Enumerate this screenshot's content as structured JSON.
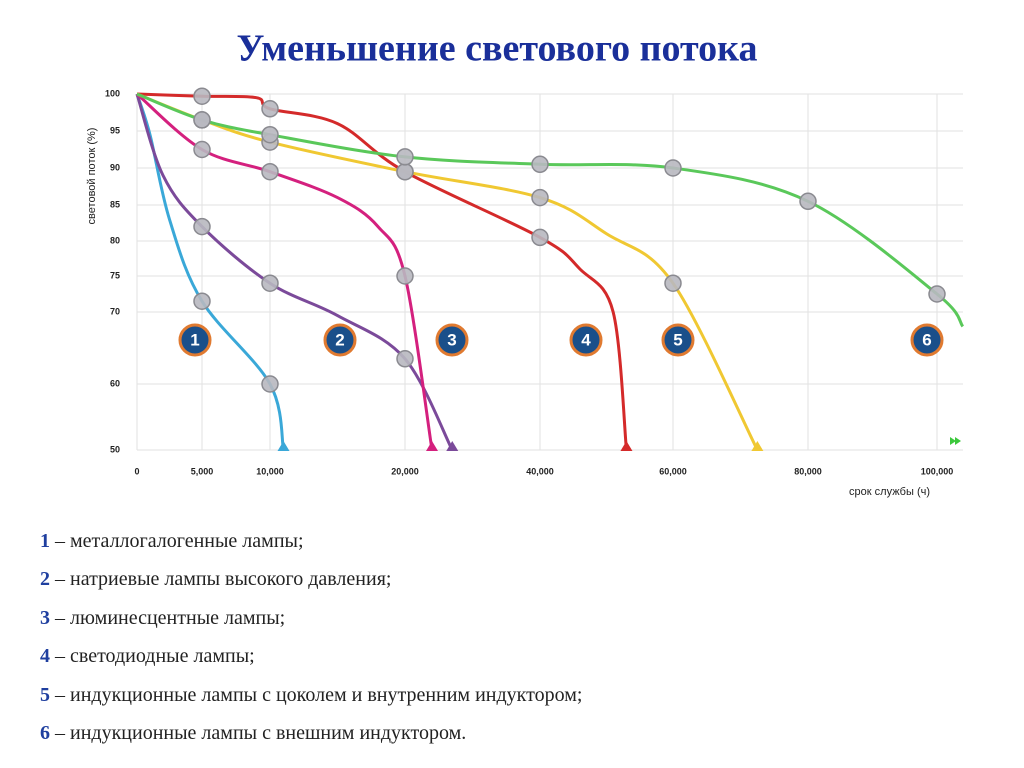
{
  "chart_data": {
    "type": "line",
    "title": "Уменьшение светового потока",
    "ylabel": "световой поток (%)",
    "xlabel": "срок службы (ч)",
    "xlim": [
      0,
      104000
    ],
    "ylim": [
      50,
      100
    ],
    "xticks": [
      0,
      {
        "value": 5000,
        "label": "5,000"
      },
      {
        "value": 10000,
        "label": "10,000"
      },
      {
        "value": 20000,
        "label": "20,000"
      },
      {
        "value": 40000,
        "label": "40,000"
      },
      {
        "value": 60000,
        "label": "60,000"
      },
      {
        "value": 80000,
        "label": "80,000"
      },
      {
        "value": 100000,
        "label": "100,000"
      }
    ],
    "yticks": [
      100,
      95,
      90,
      85,
      80,
      75,
      70,
      60,
      50
    ],
    "grid": true,
    "series": [
      {
        "name": "1",
        "description": "– металлогалогенные лампы;",
        "color": "#3aa8d8",
        "x": [
          0,
          1000,
          2500,
          5000,
          10000,
          11000
        ],
        "values": [
          100,
          94.5,
          83,
          71.5,
          60,
          50
        ]
      },
      {
        "name": "2",
        "description": "– натриевые лампы высокого давления;",
        "color": "#7b4a9a",
        "x": [
          0,
          2000,
          5000,
          10000,
          15000,
          20000,
          27000
        ],
        "values": [
          100,
          89,
          82,
          74,
          69.5,
          63.5,
          50
        ]
      },
      {
        "name": "3",
        "description": "– люминесцентные лампы;",
        "color": "#d4207e",
        "x": [
          0,
          5000,
          10000,
          15000,
          18000,
          20000,
          24000
        ],
        "values": [
          100,
          92.5,
          89.5,
          86,
          82,
          75,
          50
        ]
      },
      {
        "name": "4",
        "description": "– светодиодные лампы;",
        "color": "#d42a2a",
        "x": [
          0,
          5000,
          9000,
          10000,
          15000,
          20000,
          40000,
          46000,
          51000,
          53000
        ],
        "values": [
          100,
          99.7,
          99.5,
          98,
          96,
          89.5,
          80.5,
          76,
          70,
          50
        ]
      },
      {
        "name": "5",
        "description": "– индукционные лампы с цоколем и внутренним индуктором;",
        "color": "#f0c832",
        "x": [
          0,
          5000,
          10000,
          20000,
          40000,
          50000,
          60000,
          72500
        ],
        "values": [
          100,
          96.5,
          93.5,
          89.5,
          86,
          81,
          74,
          50
        ]
      },
      {
        "name": "6",
        "description": "– индукционные лампы с внешним индуктором.",
        "color": "#5ac85a",
        "x": [
          0,
          5000,
          10000,
          20000,
          40000,
          60000,
          80000,
          100000,
          104000
        ],
        "values": [
          100,
          96.5,
          94.5,
          91.5,
          90.5,
          90,
          85.5,
          72.5,
          68
        ]
      }
    ]
  }
}
